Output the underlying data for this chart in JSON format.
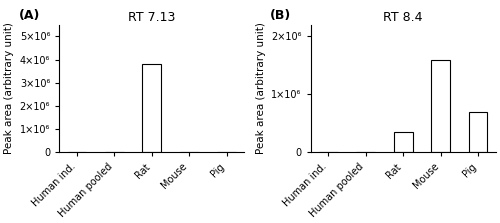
{
  "panel_A": {
    "title": "RT 7.13",
    "label": "(A)",
    "categories": [
      "Human ind.",
      "Human pooled",
      "Rat",
      "Mouse",
      "Pig"
    ],
    "values": [
      0,
      0,
      3800000,
      0,
      0
    ],
    "ylim": [
      0,
      5500000.0
    ],
    "yticks": [
      0,
      1000000.0,
      2000000.0,
      3000000.0,
      4000000.0,
      5000000.0
    ],
    "ytick_labels": [
      "0",
      "1×10⁶",
      "2×10⁶",
      "3×10⁶",
      "4×10⁶",
      "5×10⁶"
    ]
  },
  "panel_B": {
    "title": "RT 8.4",
    "label": "(B)",
    "categories": [
      "Human ind.",
      "Human pooled",
      "Rat",
      "Mouse",
      "Pig"
    ],
    "values": [
      0,
      0,
      350000,
      1600000,
      700000
    ],
    "ylim": [
      0,
      2200000.0
    ],
    "yticks": [
      0,
      1000000.0,
      2000000.0
    ],
    "ytick_labels": [
      "0",
      "1×10⁶",
      "2×10⁶"
    ]
  },
  "ylabel": "Peak area (arbitrary unit)",
  "bar_color": "white",
  "bar_edgecolor": "black",
  "background_color": "white",
  "title_fontsize": 9,
  "label_fontsize": 9,
  "tick_fontsize": 7,
  "ylabel_fontsize": 7.5,
  "bar_width": 0.5
}
